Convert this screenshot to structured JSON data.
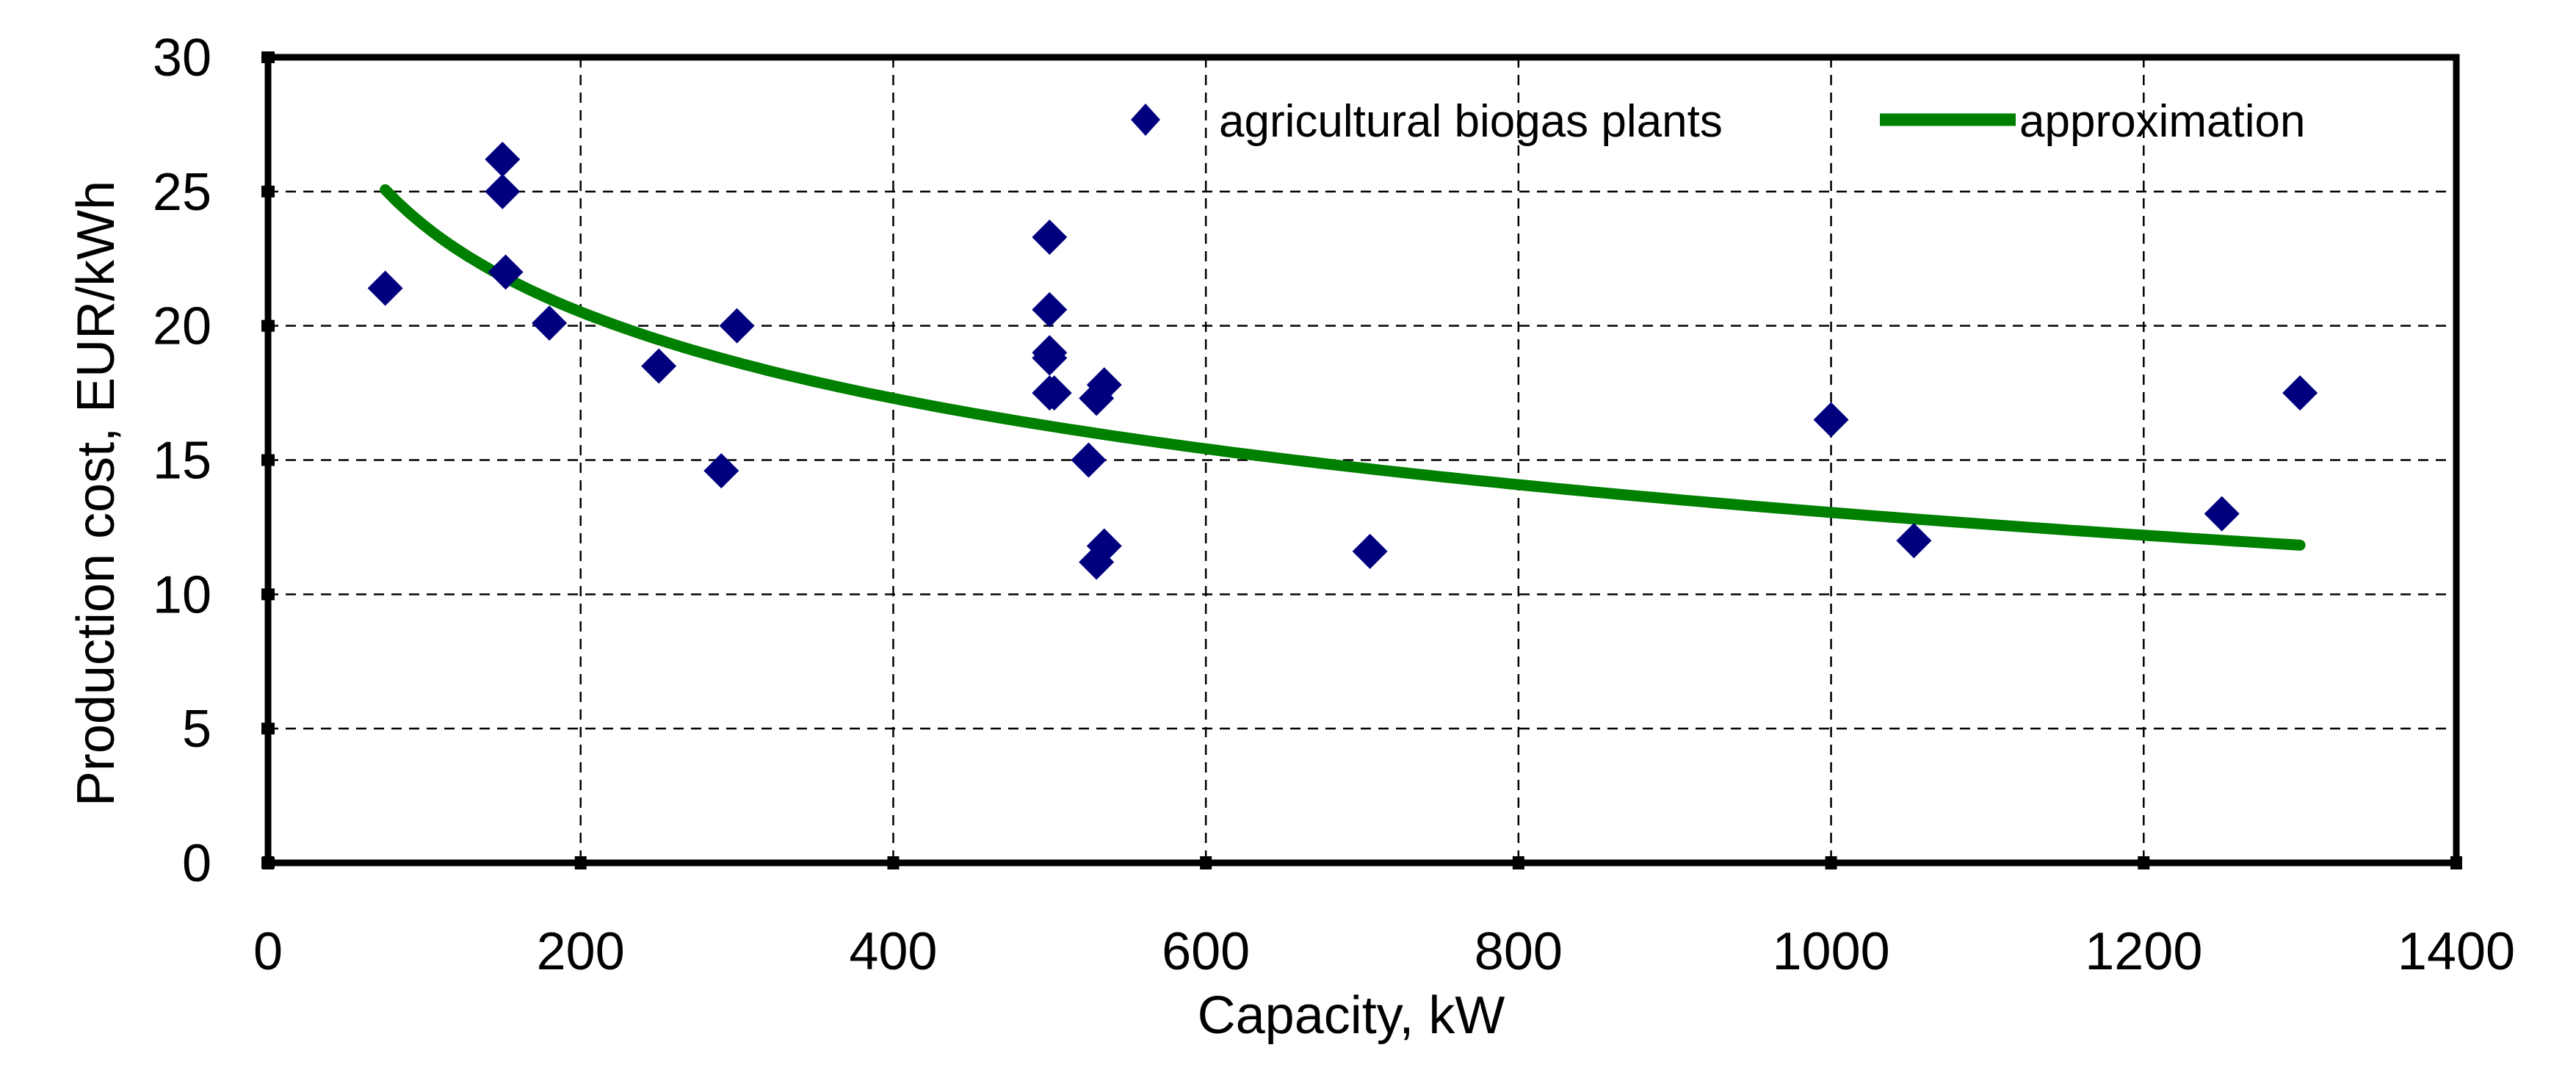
{
  "chart_data": {
    "type": "scatter",
    "title": "",
    "xlabel": "Capacity, kW",
    "ylabel": "Production cost, EUR/kWh",
    "xlim": [
      0,
      1400
    ],
    "ylim": [
      0,
      30
    ],
    "xticks": [
      0,
      200,
      400,
      600,
      800,
      1000,
      1200,
      1400
    ],
    "yticks": [
      0,
      5,
      10,
      15,
      20,
      25,
      30
    ],
    "grid": true,
    "legend_position": "top-right",
    "colors": {
      "points": "#00007F",
      "curve": "#008000",
      "axis": "#000000"
    },
    "series": [
      {
        "name": "agricultural biogas plants",
        "type": "scatter",
        "marker": "diamond",
        "x": [
          75,
          150,
          150,
          152,
          180,
          250,
          290,
          300,
          500,
          500,
          500,
          500,
          503,
          500,
          530,
          535,
          525,
          535,
          530,
          705,
          1000,
          1053,
          1250,
          1300
        ],
        "y": [
          21.4,
          26.2,
          25.0,
          22.0,
          20.1,
          18.5,
          14.6,
          20.0,
          23.3,
          20.6,
          18.8,
          19.0,
          17.5,
          17.5,
          17.3,
          17.8,
          15.0,
          11.8,
          11.2,
          11.6,
          16.5,
          12.0,
          13.0,
          17.5
        ]
      },
      {
        "name": "approximation",
        "type": "line",
        "formula": "y = 45.1 - 4.64*ln(x)",
        "x_range": [
          75,
          1300
        ]
      }
    ]
  }
}
